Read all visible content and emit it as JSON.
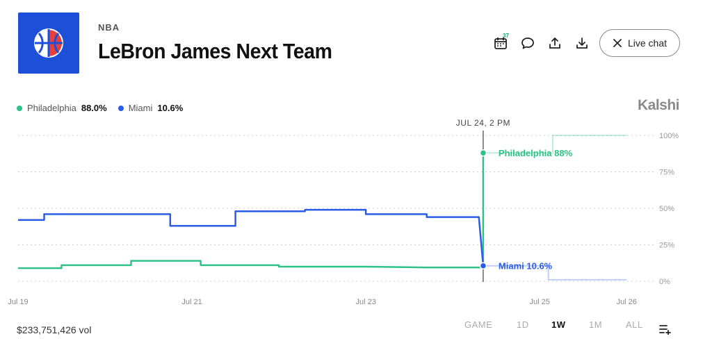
{
  "header": {
    "category": "NBA",
    "title": "LeBron James Next Team",
    "calendar_count": "37",
    "live_chat_label": "Live chat"
  },
  "brand": "Kalshi",
  "legend": [
    {
      "name": "Philadelphia",
      "value": "88.0%",
      "color": "#2ec28a"
    },
    {
      "name": "Miami",
      "value": "10.6%",
      "color": "#2b5ce6"
    }
  ],
  "footer": {
    "volume": "$233,751,426 vol",
    "ranges": [
      "GAME",
      "1D",
      "1W",
      "1M",
      "ALL"
    ],
    "active_range": "1W"
  },
  "chart_data": {
    "type": "line",
    "y_ticks": [
      "100%",
      "75%",
      "50%",
      "25%",
      "0%"
    ],
    "y_tick_values": [
      100,
      75,
      50,
      25,
      0
    ],
    "ylim": [
      0,
      100
    ],
    "x_ticks": [
      "Jul 19",
      "Jul 21",
      "Jul 23",
      "Jul 25",
      "Jul 26"
    ],
    "x_tick_values": [
      0,
      2,
      4,
      6,
      7
    ],
    "xlim": [
      0,
      7.15
    ],
    "hover": {
      "label": "JUL 24, 2 PM",
      "x": 5.35,
      "annotations": [
        {
          "series": "Philadelphia",
          "text": "Philadelphia 88%"
        },
        {
          "series": "Miami",
          "text": "Miami 10.6%"
        }
      ]
    },
    "series": [
      {
        "name": "Philadelphia",
        "color": "#2ec28a",
        "points": [
          [
            0,
            9
          ],
          [
            0.5,
            9
          ],
          [
            0.5,
            11
          ],
          [
            1.3,
            11
          ],
          [
            1.3,
            14
          ],
          [
            2.1,
            14
          ],
          [
            2.1,
            11
          ],
          [
            3.0,
            11
          ],
          [
            3.0,
            10
          ],
          [
            4.0,
            10
          ],
          [
            4.7,
            9.5
          ],
          [
            5.35,
            9.5
          ],
          [
            5.35,
            88
          ]
        ],
        "future_points": [
          [
            5.35,
            88
          ],
          [
            6.15,
            88
          ],
          [
            6.15,
            100
          ],
          [
            7.0,
            100
          ]
        ]
      },
      {
        "name": "Miami",
        "color": "#2b5ce6",
        "points": [
          [
            0,
            42
          ],
          [
            0.3,
            42
          ],
          [
            0.3,
            46
          ],
          [
            1.75,
            46
          ],
          [
            1.75,
            38
          ],
          [
            2.5,
            38
          ],
          [
            2.5,
            48
          ],
          [
            3.3,
            48
          ],
          [
            3.3,
            49
          ],
          [
            4.0,
            49
          ],
          [
            4.0,
            46
          ],
          [
            4.7,
            46
          ],
          [
            4.7,
            44
          ],
          [
            5.3,
            44
          ],
          [
            5.35,
            10.6
          ]
        ],
        "future_points": [
          [
            5.35,
            10.6
          ],
          [
            6.1,
            10.6
          ],
          [
            6.1,
            1
          ],
          [
            7.0,
            1
          ]
        ]
      }
    ]
  }
}
